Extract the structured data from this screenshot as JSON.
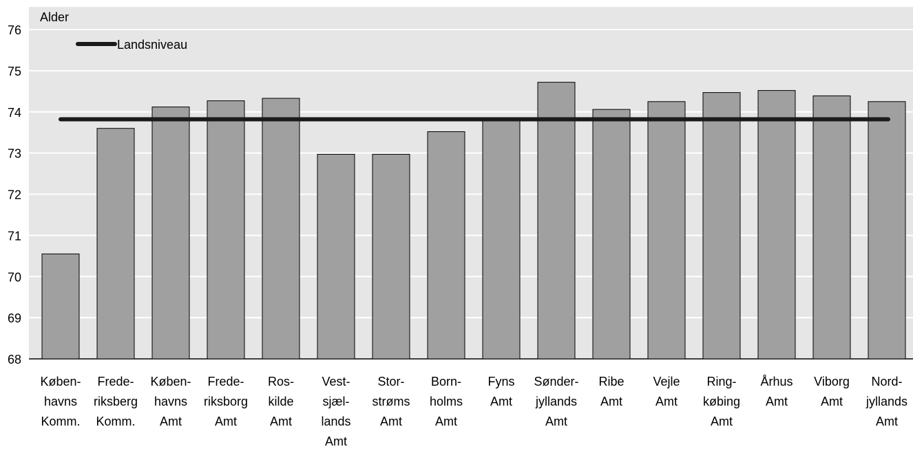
{
  "chart_data": {
    "type": "bar",
    "title": "",
    "ylabel": "Alder",
    "xlabel": "",
    "ylim": [
      68,
      76
    ],
    "yticks": [
      "68",
      "69",
      "70",
      "71",
      "72",
      "73",
      "74",
      "75",
      "76"
    ],
    "grid": true,
    "categories": [
      [
        "Køben-",
        "havns",
        "Komm."
      ],
      [
        "Frede-",
        "riksberg",
        "Komm."
      ],
      [
        "Køben-",
        "havns",
        "Amt"
      ],
      [
        "Frede-",
        "riksborg",
        "Amt"
      ],
      [
        "Ros-",
        "kilde",
        "Amt"
      ],
      [
        "Vest-",
        "sjæl-",
        "lands",
        "Amt"
      ],
      [
        "Stor-",
        "strøms",
        "Amt"
      ],
      [
        "Born-",
        "holms",
        "Amt"
      ],
      [
        "Fyns",
        "Amt"
      ],
      [
        "Sønder-",
        "jyllands",
        "Amt"
      ],
      [
        "Ribe",
        "Amt"
      ],
      [
        "Vejle",
        "Amt"
      ],
      [
        "Ring-",
        "købing",
        "Amt"
      ],
      [
        "Århus",
        "Amt"
      ],
      [
        "Viborg",
        "Amt"
      ],
      [
        "Nord-",
        "jyllands",
        "Amt"
      ]
    ],
    "values": [
      70.55,
      73.6,
      74.12,
      74.27,
      74.33,
      72.97,
      72.97,
      73.52,
      73.8,
      74.72,
      74.06,
      74.25,
      74.47,
      74.52,
      74.39,
      74.25
    ],
    "reference_line": {
      "label": "Landsniveau",
      "value": 73.82
    },
    "legend_position": "top-left",
    "colors": {
      "bar_fill": "#a0a0a0",
      "bar_stroke": "#000000",
      "plot_background": "#e6e6e6",
      "gridline": "#ffffff",
      "reference_line": "#1a1a1a"
    }
  }
}
